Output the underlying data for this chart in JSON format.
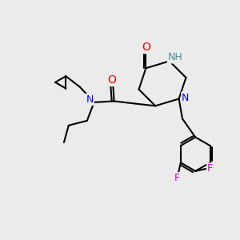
{
  "background_color": "#ebebeb",
  "bond_color": "#000000",
  "bond_width": 1.5,
  "atom_colors": {
    "N": "#0000ff",
    "O": "#ff0000",
    "F": "#cc00cc",
    "NH": "#4a9090",
    "C": "#000000"
  },
  "font_size": 9
}
